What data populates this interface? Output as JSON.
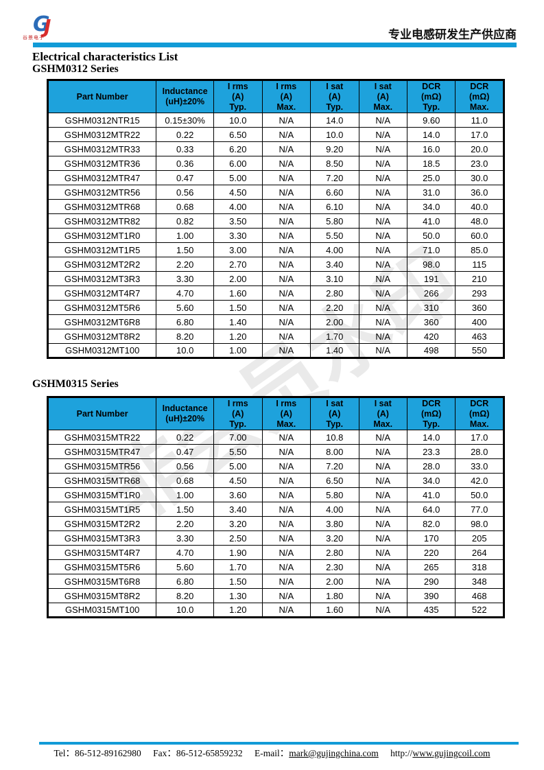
{
  "header": {
    "logo_letter_blue": "G",
    "logo_letter_red": "J",
    "logo_subtext": "谷景电子",
    "slogan": "专业电感研发生产供应商"
  },
  "page_title": "Electrical characteristics List",
  "watermark": "非会员水印",
  "tables": [
    {
      "series_title": "GSHM0312 Series",
      "columns": [
        "Part Number",
        "Inductance\n(uH)±20%",
        "I rms\n(A)\nTyp.",
        "I rms\n(A)\nMax.",
        "I sat\n(A)\nTyp.",
        "I sat\n(A)\nMax.",
        "DCR\n(mΩ)\nTyp.",
        "DCR\n(mΩ)\nMax."
      ],
      "rows": [
        [
          "GSHM0312NTR15",
          "0.15±30%",
          "10.0",
          "N/A",
          "14.0",
          "N/A",
          "9.60",
          "11.0"
        ],
        [
          "GSHM0312MTR22",
          "0.22",
          "6.50",
          "N/A",
          "10.0",
          "N/A",
          "14.0",
          "17.0"
        ],
        [
          "GSHM0312MTR33",
          "0.33",
          "6.20",
          "N/A",
          "9.20",
          "N/A",
          "16.0",
          "20.0"
        ],
        [
          "GSHM0312MTR36",
          "0.36",
          "6.00",
          "N/A",
          "8.50",
          "N/A",
          "18.5",
          "23.0"
        ],
        [
          "GSHM0312MTR47",
          "0.47",
          "5.00",
          "N/A",
          "7.20",
          "N/A",
          "25.0",
          "30.0"
        ],
        [
          "GSHM0312MTR56",
          "0.56",
          "4.50",
          "N/A",
          "6.60",
          "N/A",
          "31.0",
          "36.0"
        ],
        [
          "GSHM0312MTR68",
          "0.68",
          "4.00",
          "N/A",
          "6.10",
          "N/A",
          "34.0",
          "40.0"
        ],
        [
          "GSHM0312MTR82",
          "0.82",
          "3.50",
          "N/A",
          "5.80",
          "N/A",
          "41.0",
          "48.0"
        ],
        [
          "GSHM0312MT1R0",
          "1.00",
          "3.30",
          "N/A",
          "5.50",
          "N/A",
          "50.0",
          "60.0"
        ],
        [
          "GSHM0312MT1R5",
          "1.50",
          "3.00",
          "N/A",
          "4.00",
          "N/A",
          "71.0",
          "85.0"
        ],
        [
          "GSHM0312MT2R2",
          "2.20",
          "2.70",
          "N/A",
          "3.40",
          "N/A",
          "98.0",
          "115"
        ],
        [
          "GSHM0312MT3R3",
          "3.30",
          "2.00",
          "N/A",
          "3.10",
          "N/A",
          "191",
          "210"
        ],
        [
          "GSHM0312MT4R7",
          "4.70",
          "1.60",
          "N/A",
          "2.80",
          "N/A",
          "266",
          "293"
        ],
        [
          "GSHM0312MT5R6",
          "5.60",
          "1.50",
          "N/A",
          "2.20",
          "N/A",
          "310",
          "360"
        ],
        [
          "GSHM0312MT6R8",
          "6.80",
          "1.40",
          "N/A",
          "2.00",
          "N/A",
          "360",
          "400"
        ],
        [
          "GSHM0312MT8R2",
          "8.20",
          "1.20",
          "N/A",
          "1.70",
          "N/A",
          "420",
          "463"
        ],
        [
          "GSHM0312MT100",
          "10.0",
          "1.00",
          "N/A",
          "1.40",
          "N/A",
          "498",
          "550"
        ]
      ]
    },
    {
      "series_title": "GSHM0315 Series",
      "columns": [
        "Part Number",
        "Inductance\n(uH)±20%",
        "I rms\n(A)\nTyp.",
        "I rms\n(A)\nMax.",
        "I sat\n(A)\nTyp.",
        "I sat\n(A)\nMax.",
        "DCR\n(mΩ)\nTyp.",
        "DCR\n(mΩ)\nMax."
      ],
      "rows": [
        [
          "GSHM0315MTR22",
          "0.22",
          "7.00",
          "N/A",
          "10.8",
          "N/A",
          "14.0",
          "17.0"
        ],
        [
          "GSHM0315MTR47",
          "0.47",
          "5.50",
          "N/A",
          "8.00",
          "N/A",
          "23.3",
          "28.0"
        ],
        [
          "GSHM0315MTR56",
          "0.56",
          "5.00",
          "N/A",
          "7.20",
          "N/A",
          "28.0",
          "33.0"
        ],
        [
          "GSHM0315MTR68",
          "0.68",
          "4.50",
          "N/A",
          "6.50",
          "N/A",
          "34.0",
          "42.0"
        ],
        [
          "GSHM0315MT1R0",
          "1.00",
          "3.60",
          "N/A",
          "5.80",
          "N/A",
          "41.0",
          "50.0"
        ],
        [
          "GSHM0315MT1R5",
          "1.50",
          "3.40",
          "N/A",
          "4.00",
          "N/A",
          "64.0",
          "77.0"
        ],
        [
          "GSHM0315MT2R2",
          "2.20",
          "3.20",
          "N/A",
          "3.80",
          "N/A",
          "82.0",
          "98.0"
        ],
        [
          "GSHM0315MT3R3",
          "3.30",
          "2.50",
          "N/A",
          "3.20",
          "N/A",
          "170",
          "205"
        ],
        [
          "GSHM0315MT4R7",
          "4.70",
          "1.90",
          "N/A",
          "2.80",
          "N/A",
          "220",
          "264"
        ],
        [
          "GSHM0315MT5R6",
          "5.60",
          "1.70",
          "N/A",
          "2.30",
          "N/A",
          "265",
          "318"
        ],
        [
          "GSHM0315MT6R8",
          "6.80",
          "1.50",
          "N/A",
          "2.00",
          "N/A",
          "290",
          "348"
        ],
        [
          "GSHM0315MT8R2",
          "8.20",
          "1.30",
          "N/A",
          "1.80",
          "N/A",
          "390",
          "468"
        ],
        [
          "GSHM0315MT100",
          "10.0",
          "1.20",
          "N/A",
          "1.60",
          "N/A",
          "435",
          "522"
        ]
      ]
    }
  ],
  "footer": {
    "tel_label": "Tel：",
    "tel": "86-512-89162980",
    "fax_label": "Fax：",
    "fax": "86-512-65859232",
    "email_label": "E-mail：",
    "email": "mark@gujingchina.com",
    "url_prefix": "http://",
    "url": "www.gujingcoil.com"
  },
  "colors": {
    "accent_bar_blue": "#119BD7",
    "table_header_cyan": "#1EA2DC",
    "logo_blue": "#2B6CB8",
    "logo_red": "#D92C2C",
    "watermark_gray": "#7D7D7D"
  }
}
